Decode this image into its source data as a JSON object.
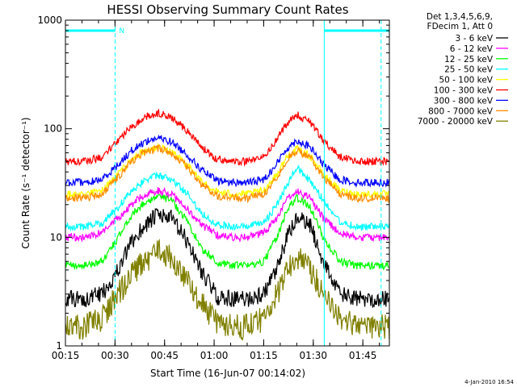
{
  "chart_data": {
    "type": "line",
    "title": "HESSI Observing Summary Count Rates",
    "xlabel": "Start Time (16-Jun-07 00:14:02)",
    "ylabel": "Count Rate (s⁻¹ detector⁻¹)",
    "x_unit": "minutes after 00:14:02",
    "xlim": [
      0.97,
      99.0
    ],
    "ylim": [
      1,
      1000
    ],
    "yscale": "log",
    "x_ticks": [
      {
        "value": 0.97,
        "label": "00:15"
      },
      {
        "value": 15.97,
        "label": "00:30"
      },
      {
        "value": 30.97,
        "label": "00:45"
      },
      {
        "value": 45.97,
        "label": "01:00"
      },
      {
        "value": 60.97,
        "label": "01:15"
      },
      {
        "value": 75.97,
        "label": "01:30"
      },
      {
        "value": 90.97,
        "label": "01:45"
      }
    ],
    "y_ticks": [
      {
        "value": 1,
        "label": "1"
      },
      {
        "value": 10,
        "label": "10"
      },
      {
        "value": 100,
        "label": "100"
      },
      {
        "value": 1000,
        "label": "1000"
      }
    ],
    "legend_header": [
      "Det 1,3,4,5,6,9,",
      "FDecim 1, Att 0"
    ],
    "legend_position": "outside-right",
    "series": [
      {
        "name": "3 - 6 keV",
        "color": "#000000",
        "x": [
          0.97,
          7,
          12,
          17,
          21,
          25,
          29,
          33,
          38,
          42,
          47,
          52,
          56,
          61,
          65,
          68,
          71,
          75,
          79,
          84,
          89,
          94,
          99
        ],
        "y": [
          2.7,
          2.7,
          3,
          5,
          9,
          13,
          16,
          15,
          9,
          5,
          2.8,
          2.7,
          2.7,
          3,
          5,
          10,
          15,
          13,
          6,
          3,
          2.7,
          2.7,
          2.7
        ]
      },
      {
        "name": "6 - 12 keV",
        "color": "#ff00ff",
        "x": [
          0.97,
          7,
          12,
          17,
          21,
          25,
          29,
          33,
          38,
          42,
          47,
          52,
          56,
          61,
          65,
          68,
          71,
          75,
          79,
          84,
          89,
          94,
          99
        ],
        "y": [
          10,
          10,
          11,
          15,
          20,
          25,
          27,
          25,
          18,
          13,
          10.5,
          10,
          10,
          11,
          15,
          22,
          27,
          23,
          15,
          11,
          10,
          10,
          10
        ]
      },
      {
        "name": "12 - 25 keV",
        "color": "#00ff00",
        "x": [
          0.97,
          7,
          12,
          17,
          21,
          25,
          29,
          33,
          38,
          42,
          47,
          52,
          56,
          61,
          65,
          68,
          71,
          75,
          79,
          84,
          89,
          94,
          99
        ],
        "y": [
          5.5,
          5.5,
          6,
          10,
          16,
          21,
          24,
          22,
          14,
          8,
          5.8,
          5.5,
          5.5,
          6,
          10,
          18,
          23,
          19,
          10,
          6,
          5.5,
          5.5,
          5.5
        ]
      },
      {
        "name": "25 - 50 keV",
        "color": "#00ffff",
        "x": [
          0.97,
          7,
          12,
          17,
          21,
          25,
          29,
          33,
          38,
          42,
          47,
          52,
          56,
          61,
          65,
          68,
          71,
          73,
          75,
          79,
          84,
          89,
          94,
          99
        ],
        "y": [
          12.5,
          12.5,
          13.5,
          19,
          27,
          34,
          37,
          34,
          25,
          17,
          13,
          12.5,
          12.5,
          13.5,
          20,
          30,
          45,
          38,
          33,
          22,
          14,
          12.5,
          12.5,
          12.5
        ]
      },
      {
        "name": "50 - 100 keV",
        "color": "#ffff00",
        "x": [
          0.97,
          7,
          12,
          17,
          21,
          25,
          29,
          33,
          38,
          42,
          47,
          52,
          56,
          61,
          65,
          68,
          71,
          75,
          79,
          84,
          89,
          94,
          99
        ],
        "y": [
          25,
          25,
          27,
          38,
          52,
          63,
          67,
          62,
          46,
          33,
          26,
          25,
          25,
          27,
          38,
          55,
          65,
          56,
          38,
          27,
          25,
          25,
          25
        ]
      },
      {
        "name": "100 - 300 keV",
        "color": "#ff0000",
        "x": [
          0.97,
          7,
          12,
          17,
          21,
          25,
          29,
          33,
          38,
          42,
          47,
          52,
          56,
          61,
          65,
          68,
          71,
          75,
          79,
          84,
          89,
          94,
          99
        ],
        "y": [
          50,
          50,
          55,
          78,
          105,
          128,
          138,
          128,
          95,
          68,
          52,
          50,
          50,
          55,
          80,
          112,
          135,
          115,
          78,
          55,
          50,
          50,
          50
        ]
      },
      {
        "name": "300 - 800 keV",
        "color": "#0000ff",
        "x": [
          0.97,
          7,
          12,
          17,
          21,
          25,
          29,
          33,
          38,
          42,
          47,
          52,
          56,
          61,
          65,
          68,
          71,
          75,
          79,
          84,
          89,
          94,
          99
        ],
        "y": [
          32,
          32,
          34,
          47,
          63,
          76,
          82,
          76,
          57,
          42,
          33,
          32,
          32,
          34,
          48,
          66,
          78,
          68,
          47,
          34,
          32,
          32,
          32
        ]
      },
      {
        "name": "800 - 7000 keV",
        "color": "#ff8c00",
        "x": [
          0.97,
          7,
          12,
          17,
          21,
          25,
          29,
          33,
          38,
          42,
          47,
          52,
          56,
          61,
          65,
          68,
          71,
          75,
          79,
          84,
          89,
          94,
          99
        ],
        "y": [
          23,
          23,
          25,
          36,
          50,
          61,
          66,
          60,
          44,
          31,
          24,
          23,
          23,
          25,
          36,
          52,
          63,
          54,
          36,
          25,
          23,
          23,
          23
        ]
      },
      {
        "name": "7000 - 20000 keV",
        "color": "#808000",
        "x": [
          0.97,
          7,
          12,
          17,
          21,
          25,
          29,
          33,
          38,
          42,
          47,
          52,
          56,
          61,
          65,
          68,
          71,
          75,
          79,
          84,
          89,
          94,
          99
        ],
        "y": [
          1.5,
          1.5,
          1.8,
          3,
          4.5,
          6,
          7.5,
          6.5,
          4,
          2.5,
          1.6,
          1.5,
          1.5,
          1.8,
          3,
          5,
          6.5,
          5,
          3,
          1.8,
          1.5,
          1.5,
          1.5
        ]
      }
    ],
    "vertical_lines": [
      {
        "x": 0.97,
        "color": "#00ffff",
        "style": "solid"
      },
      {
        "x": 16.0,
        "color": "#00ffff",
        "style": "dashed"
      },
      {
        "x": 79.3,
        "color": "#00ffff",
        "style": "solid"
      },
      {
        "x": 96.5,
        "color": "#00ffff",
        "style": "dashed"
      }
    ],
    "flag_segments": [
      {
        "x_start": 0.97,
        "x_end": 16.0,
        "y": 800,
        "color": "#00ffff"
      },
      {
        "x_start": 79.3,
        "x_end": 99.0,
        "y": 800,
        "color": "#00ffff"
      }
    ],
    "annotations": [
      {
        "text": "N",
        "x": 17.2,
        "y": 800,
        "color": "#00ffff"
      }
    ],
    "timestamp": "4-Jan-2010 16:54"
  }
}
